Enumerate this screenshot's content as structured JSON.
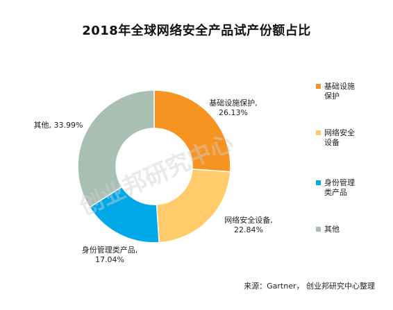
{
  "chart_data": {
    "type": "pie",
    "title": "2018年全球网络安全产品试产份额占比",
    "categories": [
      "基础设施保护",
      "网络安全设备",
      "身份管理类产品",
      "其他"
    ],
    "values": [
      26.13,
      22.84,
      17.04,
      33.99
    ],
    "value_labels": [
      "26.13%",
      "22.84%",
      "17.04%",
      "33.99%"
    ],
    "colors": [
      "#F79421",
      "#FFCB6B",
      "#00A8E8",
      "#A9BFB3"
    ],
    "legend": [
      [
        "基础设施",
        "保护"
      ],
      [
        "网络安全",
        "设备"
      ],
      [
        "身份管理",
        "类产品"
      ],
      [
        "其他"
      ]
    ],
    "legend_position": "right",
    "donut": true
  },
  "source": "来源：Gartner， 创业邦研究中心整理",
  "watermark": "创业邦研究中心"
}
